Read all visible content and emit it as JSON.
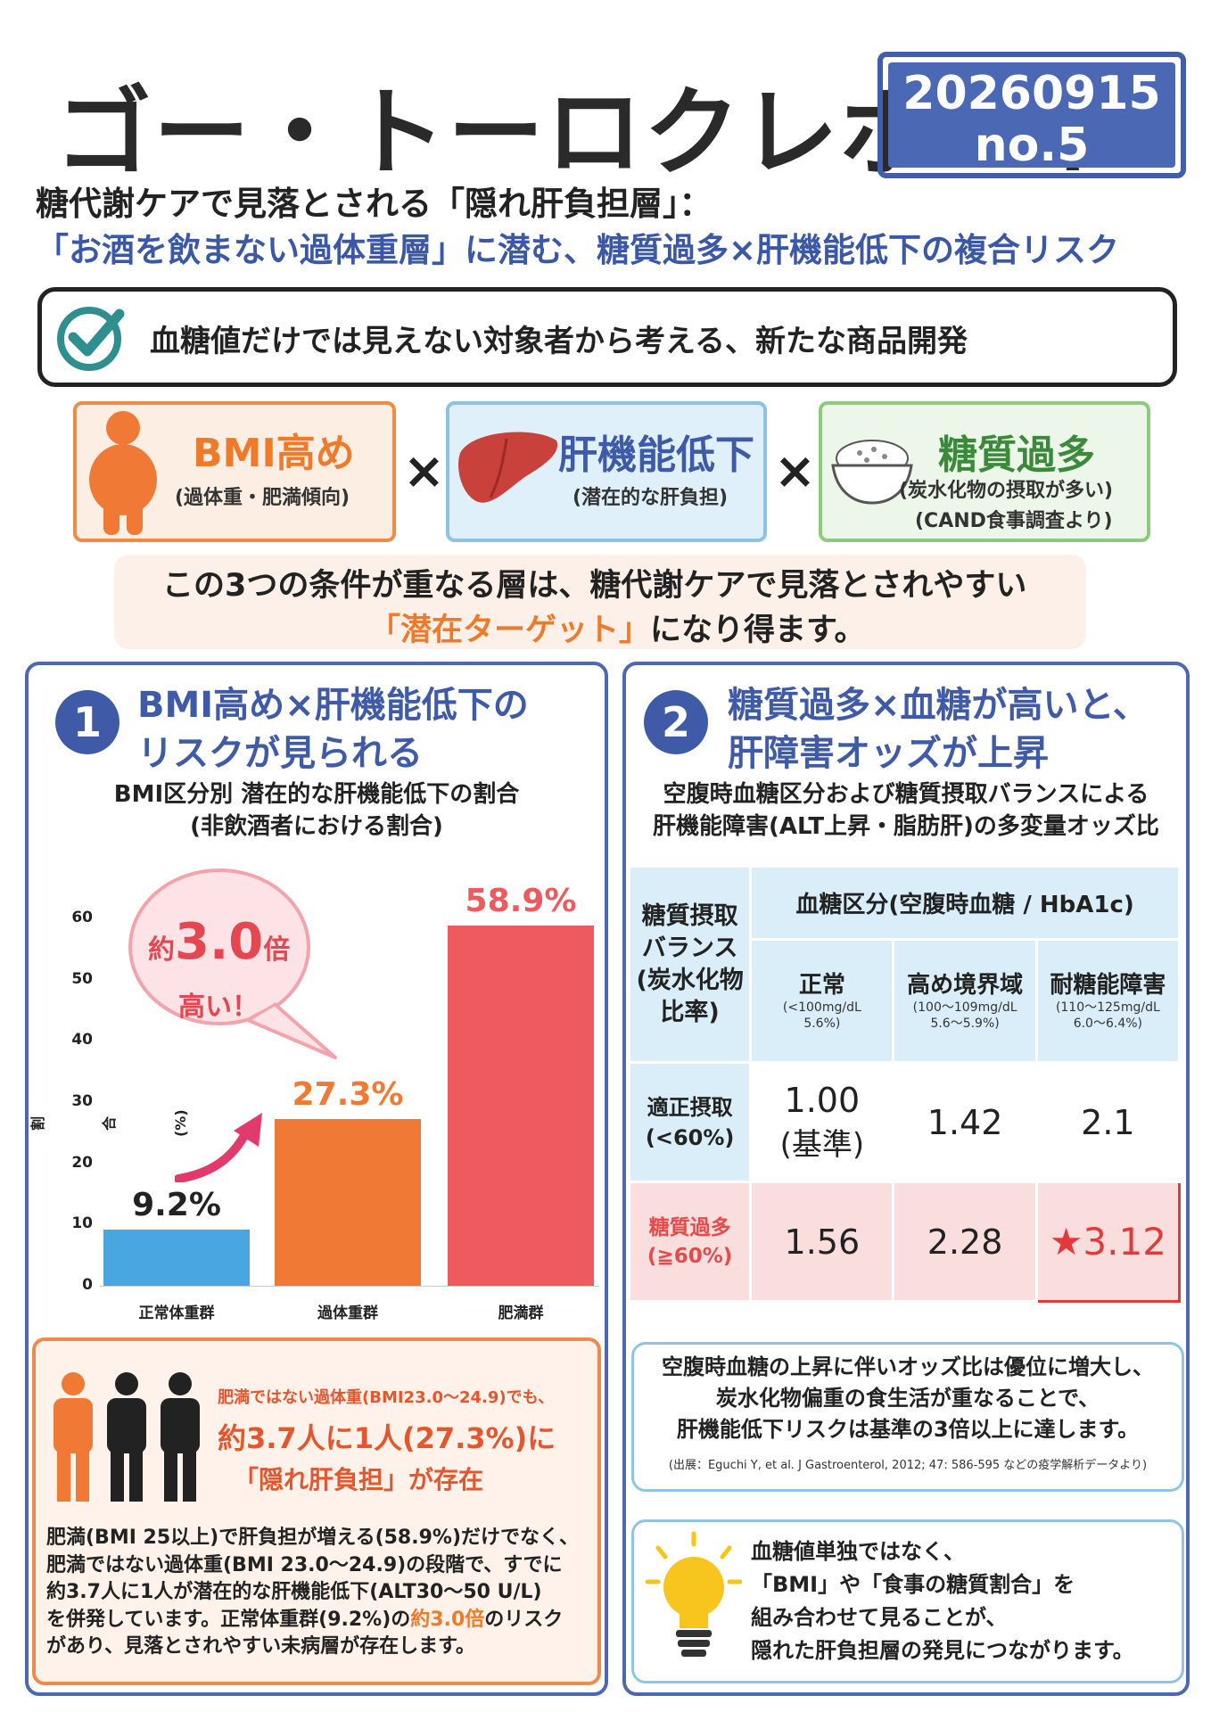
{
  "header": {
    "title": "ゴー・トーロクレポート",
    "date": "20260915",
    "issue": "no.5",
    "subtitle1": "糖代謝ケアで見落とされる「隠れ肝負担層」：",
    "subtitle2": "「お酒を飲まない過体重層」に潜む、糖質過多×肝機能低下の複合リスク"
  },
  "check": {
    "text": "血糖値だけでは見えない対象者から考える、新たな商品開発"
  },
  "conditions": [
    {
      "title": "BMI高め",
      "sub": "(過体重・肥満傾向)"
    },
    {
      "title": "肝機能低下",
      "sub": "(潜在的な肝負担)"
    },
    {
      "title": "糖質過多",
      "sub": "(炭水化物の摂取が多い)",
      "sub2": "(CAND食事調査より)"
    }
  ],
  "times_symbol": "×",
  "note": {
    "line1": "この3つの条件が重なる層は、糖代謝ケアで見落とされやすい",
    "highlight": "「潜在ターゲット」",
    "line2_rest": "になり得ます。"
  },
  "panel1": {
    "num": "1",
    "head1": "BMI高め×肝機能低下の",
    "head2": "リスクが見られる",
    "sub1": "BMI区分別 潜在的な肝機能低下の割合",
    "sub2": "(非飲酒者における割合)",
    "bubble_prefix": "約",
    "bubble_big": "3.0",
    "bubble_suffix": "倍",
    "bubble_line2": "高い！"
  },
  "chart_data": {
    "type": "bar",
    "categories": [
      "正常体重群",
      "過体重群",
      "肥満群"
    ],
    "values": [
      9.2,
      27.3,
      58.9
    ],
    "value_labels": [
      "9.2%",
      "27.3%",
      "58.9%"
    ],
    "ylabel": "割合(%)",
    "ylim": [
      0,
      60
    ],
    "yticks": [
      0,
      10,
      20,
      30,
      40,
      50,
      60
    ],
    "colors": [
      "#4aa6e0",
      "#f07a35",
      "#ee5a5e"
    ],
    "grid": false
  },
  "callout": {
    "line1": "肥満ではない過体重(BMI23.0〜24.9)でも、",
    "line2": "約3.7人に1人(27.3%)に",
    "line3": "「隠れ肝負担」が存在"
  },
  "body_text": {
    "l1": "肥満(BMI 25以上)で肝負担が増える(58.9%)だけでなく、",
    "l2": "肥満ではない過体重(BMI 23.0〜24.9)の段階で、すでに",
    "l3": "約3.7人に1人が潜在的な肝機能低下(ALT30〜50 U/L)",
    "l4": "を併発しています。正常体重群(9.2%)の",
    "l4_hl": "約3.0倍",
    "l4_rest": "のリスク",
    "l5": "があり、見落とされやすい未病層が存在します。"
  },
  "panel2": {
    "num": "2",
    "head1": "糖質過多×血糖が高いと、",
    "head2": "肝障害オッズが上昇",
    "sub1": "空腹時血糖区分および糖質摂取バランスによる",
    "sub2": "肝機能障害(ALT上昇・脂肪肝)の多変量オッズ比"
  },
  "table": {
    "row_header": [
      "糖質摂取",
      "バランス",
      "(炭水化物",
      "比率)"
    ],
    "group_header": "血糖区分(空腹時血糖 / HbA1c)",
    "columns": [
      {
        "name": "正常",
        "sub1": "(<100mg/dL",
        "sub2": "5.6%)"
      },
      {
        "name": "高め境界域",
        "sub1": "(100〜109mg/dL",
        "sub2": "5.6〜5.9%)"
      },
      {
        "name": "耐糖能障害",
        "sub1": "(110〜125mg/dL",
        "sub2": "6.0〜6.4%)"
      }
    ],
    "rows": [
      {
        "label1": "適正摂取",
        "label2": "(<60%)",
        "values": [
          "1.00",
          "1.42",
          "2.1"
        ],
        "baseline": "(基準)"
      },
      {
        "label1": "糖質過多",
        "label2": "(≧60%)",
        "values": [
          "1.56",
          "2.28",
          "★3.12"
        ]
      }
    ]
  },
  "info": {
    "l1": "空腹時血糖の上昇に伴いオッズ比は優位に増大し、",
    "l2": "炭水化物偏重の食生活が重なることで、",
    "l3": "肝機能低下リスクは基準の3倍以上に達します。",
    "source": "(出展：Eguchi Y, et al. J Gastroenterol, 2012; 47: 586-595 などの疫学解析データより)"
  },
  "tip": {
    "l1": "血糖値単独ではなく、",
    "l2": "「BMI」や「食事の糖質割合」を",
    "l3": "組み合わせて見ることが、",
    "l4": "隠れた肝負担層の発見につながります。"
  }
}
